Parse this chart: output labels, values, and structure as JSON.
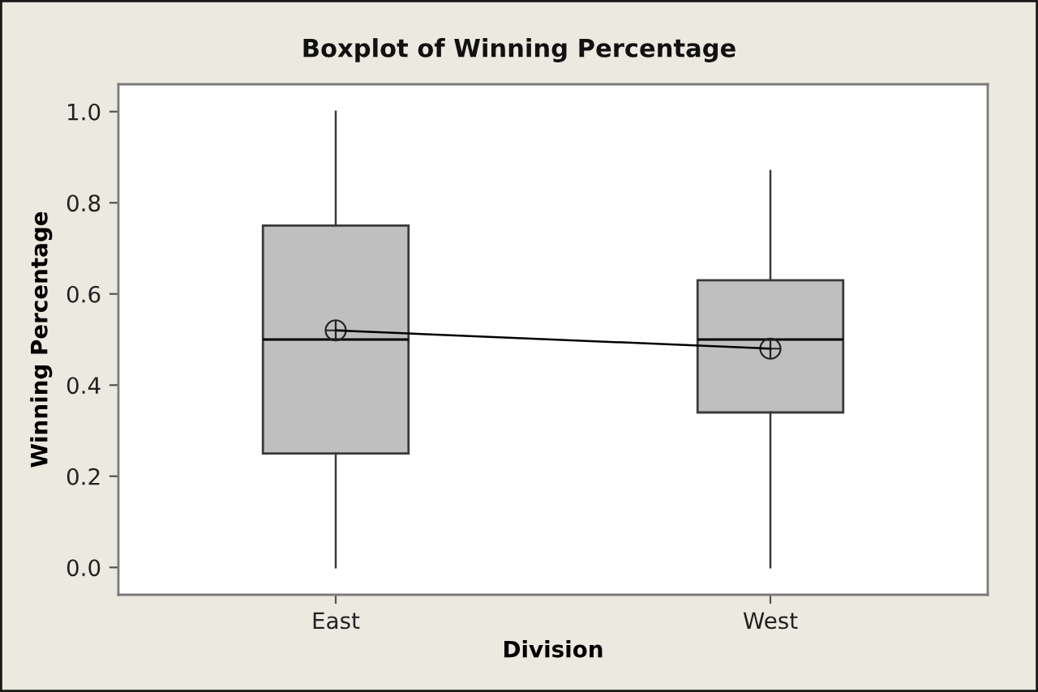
{
  "chart_data": {
    "type": "box",
    "title": "Boxplot of Winning Percentage",
    "xlabel": "Division",
    "ylabel": "Winning Percentage",
    "categories": [
      "East",
      "West"
    ],
    "series": [
      {
        "color": "#bfbfbf",
        "boxes": [
          {
            "low": 0.0,
            "q1": 0.25,
            "median": 0.5,
            "q3": 0.75,
            "high": 1.0,
            "mean": 0.52
          },
          {
            "low": 0.0,
            "q1": 0.34,
            "median": 0.5,
            "q3": 0.63,
            "high": 0.87,
            "mean": 0.48
          }
        ]
      },
      {
        "type": "line",
        "color": "#000000",
        "values": [
          0.52,
          0.48
        ]
      }
    ],
    "ylim": [
      -0.06,
      1.06
    ],
    "yticks": [
      {
        "value": 0,
        "label": "0.0"
      },
      0.2,
      0.4,
      0.6,
      0.8,
      {
        "value": 1,
        "label": "1.0"
      }
    ]
  }
}
